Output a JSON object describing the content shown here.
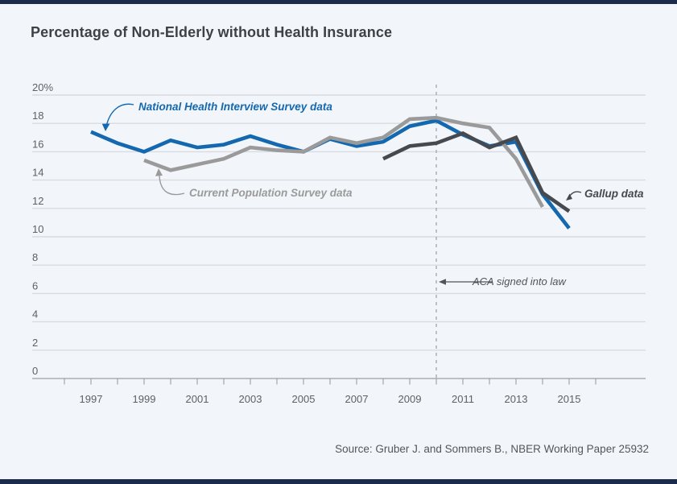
{
  "page": {
    "title": "Percentage of Non-Elderly without Health Insurance",
    "source": "Source: Gruber J. and Sommers B., NBER Working Paper 25932",
    "accent_bar_color": "#1c2b4c",
    "background_color": "#f2f6fa"
  },
  "chart_data": {
    "type": "line",
    "title": "Percentage of Non-Elderly without Health Insurance",
    "xlabel": "",
    "ylabel": "",
    "ylim": [
      0,
      20
    ],
    "xlim": [
      1996,
      2016
    ],
    "grid": true,
    "legend_position": "inline-annotations",
    "ytick_labels": [
      "0",
      "2",
      "4",
      "6",
      "8",
      "10",
      "12",
      "14",
      "16",
      "18",
      "20%"
    ],
    "xtick_label_years": [
      1997,
      1999,
      2001,
      2003,
      2005,
      2007,
      2009,
      2011,
      2013,
      2015
    ],
    "xtick_labels": [
      "1997",
      "1999",
      "2001",
      "2003",
      "2005",
      "2007",
      "2009",
      "2011",
      "2013",
      "2015"
    ],
    "series": [
      {
        "id": "nhis",
        "name": "National Health Interview Survey data",
        "color": "#1468af",
        "x": [
          1997,
          1998,
          1999,
          2000,
          2001,
          2002,
          2003,
          2004,
          2005,
          2006,
          2007,
          2008,
          2009,
          2010,
          2011,
          2012,
          2013,
          2014,
          2015
        ],
        "values": [
          17.4,
          16.6,
          16.0,
          16.8,
          16.3,
          16.5,
          17.1,
          16.5,
          16.0,
          16.9,
          16.4,
          16.7,
          17.8,
          18.2,
          17.2,
          16.4,
          16.7,
          13.0,
          10.6
        ]
      },
      {
        "id": "cps",
        "name": "Current Population Survey data",
        "color": "#9a9a9a",
        "x": [
          1999,
          2000,
          2001,
          2002,
          2003,
          2004,
          2005,
          2006,
          2007,
          2008,
          2009,
          2010,
          2011,
          2012,
          2013,
          2014
        ],
        "values": [
          15.4,
          14.7,
          15.1,
          15.5,
          16.3,
          16.1,
          16.0,
          17.0,
          16.6,
          17.0,
          18.3,
          18.4,
          18.0,
          17.7,
          15.5,
          12.1
        ]
      },
      {
        "id": "gallup",
        "name": "Gallup data",
        "color": "#46494d",
        "x": [
          2008,
          2009,
          2010,
          2011,
          2012,
          2013,
          2014,
          2015
        ],
        "values": [
          15.5,
          16.4,
          16.6,
          17.3,
          16.3,
          17.0,
          13.1,
          11.8
        ]
      }
    ],
    "aca": {
      "label": "ACA signed into law",
      "year": 2010,
      "color": "#515459"
    }
  }
}
